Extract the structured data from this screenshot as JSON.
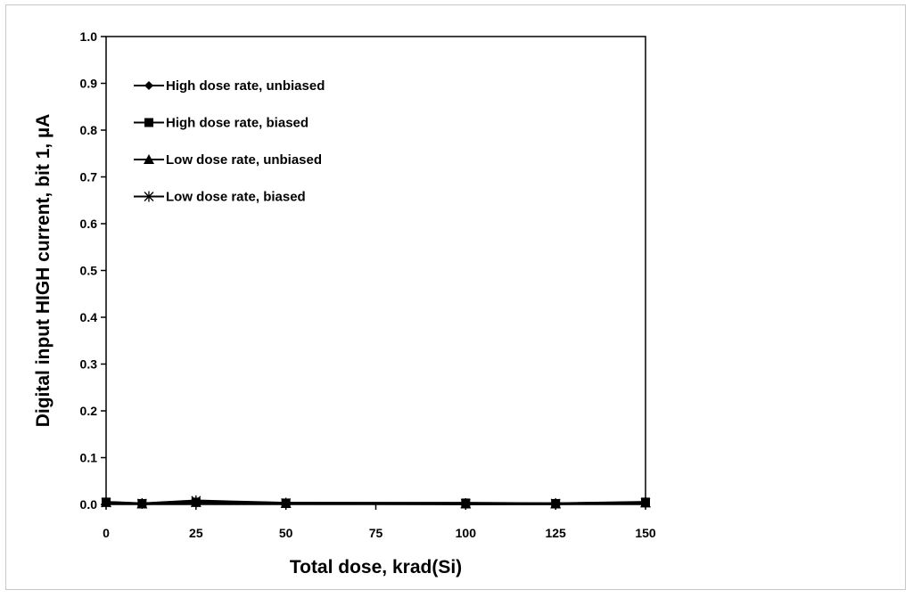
{
  "chart_data": {
    "type": "line",
    "title": "",
    "xlabel": "Total dose, krad(Si)",
    "ylabel": "Digital input HIGH current, bit 1, µA",
    "xlim": [
      0,
      150
    ],
    "ylim": [
      0,
      1.0
    ],
    "x_ticks": [
      "0",
      "25",
      "50",
      "75",
      "100",
      "125",
      "150"
    ],
    "y_ticks": [
      "0.0",
      "0.1",
      "0.2",
      "0.3",
      "0.4",
      "0.5",
      "0.6",
      "0.7",
      "0.8",
      "0.9",
      "1.0"
    ],
    "grid": false,
    "legend_position": "top-left",
    "series": [
      {
        "name": "High dose rate, unbiased",
        "marker": "diamond",
        "color": "#000000",
        "x": [
          0,
          10,
          25,
          50,
          100,
          125,
          150
        ],
        "y": [
          0.005,
          0.001,
          0.004,
          0.003,
          0.001,
          0.002,
          0.004
        ]
      },
      {
        "name": "High dose rate, biased",
        "marker": "square",
        "color": "#000000",
        "x": [
          0,
          10,
          25,
          50,
          100,
          125,
          150
        ],
        "y": [
          0.005,
          0.002,
          0.005,
          0.003,
          0.003,
          0.002,
          0.005
        ]
      },
      {
        "name": "Low dose rate, unbiased",
        "marker": "triangle",
        "color": "#000000",
        "x": [
          0,
          10,
          25,
          50,
          100,
          125,
          150
        ],
        "y": [
          0.004,
          0.001,
          0.004,
          0.002,
          0.001,
          0.001,
          0.003
        ]
      },
      {
        "name": "Low dose rate, biased",
        "marker": "x",
        "color": "#000000",
        "x": [
          0,
          10,
          25,
          50,
          100,
          125,
          150
        ],
        "y": [
          0.004,
          0.002,
          0.008,
          0.003,
          0.002,
          0.002,
          0.004
        ]
      }
    ]
  }
}
